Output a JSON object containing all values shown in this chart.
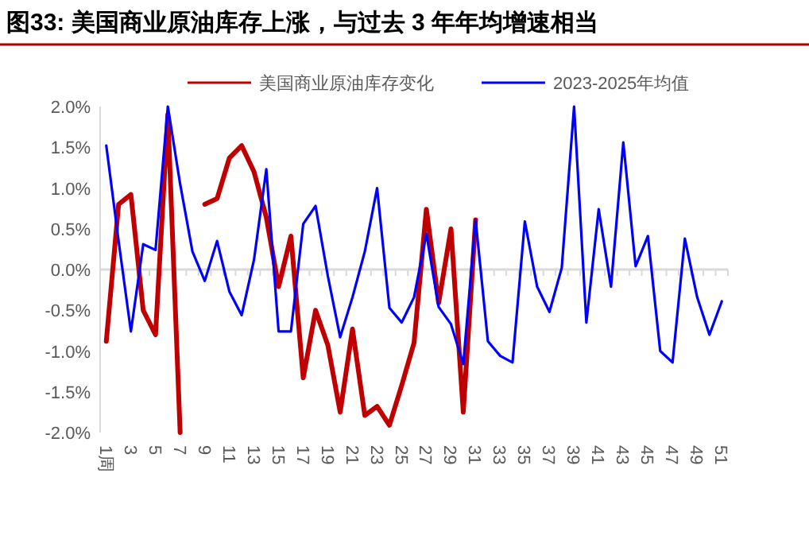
{
  "chart_data": {
    "type": "line",
    "title": "图33:  美国商业原油库存上涨，与过去 3 年年均增速相当",
    "categories": [
      "1周",
      null,
      "3",
      null,
      "5",
      null,
      "7",
      null,
      "9",
      null,
      "11",
      null,
      "13",
      null,
      "15",
      null,
      "17",
      null,
      "19",
      null,
      "21",
      null,
      "23",
      null,
      "25",
      null,
      "27",
      null,
      "29",
      null,
      "31",
      null,
      "33",
      null,
      "35",
      null,
      "37",
      null,
      "39",
      null,
      "41",
      null,
      "43",
      null,
      "45",
      null,
      "47",
      null,
      "49",
      null,
      "51"
    ],
    "series": [
      {
        "name": "美国商业原油库存变化",
        "color": "#c00000",
        "values": [
          -0.88,
          0.8,
          0.92,
          -0.5,
          -0.8,
          1.9,
          -2.0,
          null,
          0.8,
          0.87,
          1.37,
          1.52,
          1.2,
          0.64,
          -0.21,
          0.41,
          -1.33,
          -0.5,
          -0.93,
          -1.75,
          -0.73,
          -1.79,
          -1.68,
          -1.91,
          -1.42,
          -0.9,
          0.74,
          -0.41,
          0.5,
          -1.75,
          0.61,
          null,
          null,
          null,
          null,
          null,
          null,
          null,
          null,
          null,
          null,
          null,
          null,
          null,
          null,
          null,
          null,
          null,
          null,
          null,
          null
        ]
      },
      {
        "name": "2023-2025年均值",
        "color": "#0000ff",
        "values": [
          1.52,
          0.35,
          -0.76,
          0.31,
          0.24,
          2.0,
          1.05,
          0.22,
          -0.14,
          0.35,
          -0.27,
          -0.56,
          0.12,
          1.23,
          -0.76,
          -0.76,
          0.56,
          0.78,
          -0.08,
          -0.83,
          -0.34,
          0.22,
          1.0,
          -0.47,
          -0.65,
          -0.34,
          0.44,
          -0.46,
          -0.67,
          -1.16,
          0.61,
          -0.88,
          -1.06,
          -1.14,
          0.59,
          -0.21,
          -0.52,
          0.02,
          2.0,
          -0.65,
          0.74,
          -0.21,
          1.56,
          0.04,
          0.41,
          -1.0,
          -1.14,
          0.38,
          -0.34,
          -0.8,
          -0.39
        ]
      }
    ],
    "ylim": [
      -2.0,
      2.0
    ],
    "yticks": [
      {
        "value": -2.0,
        "label": "-2.0%"
      },
      {
        "value": -1.5,
        "label": "-1.5%"
      },
      {
        "value": -1.0,
        "label": "-1.0%"
      },
      {
        "value": -0.5,
        "label": "-0.5%"
      },
      {
        "value": 0,
        "label": "0.0%"
      },
      {
        "value": 0.5,
        "label": "0.5%"
      },
      {
        "value": 1.0,
        "label": "1.0%"
      },
      {
        "value": 1.5,
        "label": "1.5%"
      },
      {
        "value": 2.0,
        "label": "2.0%"
      }
    ],
    "legend": "top"
  }
}
